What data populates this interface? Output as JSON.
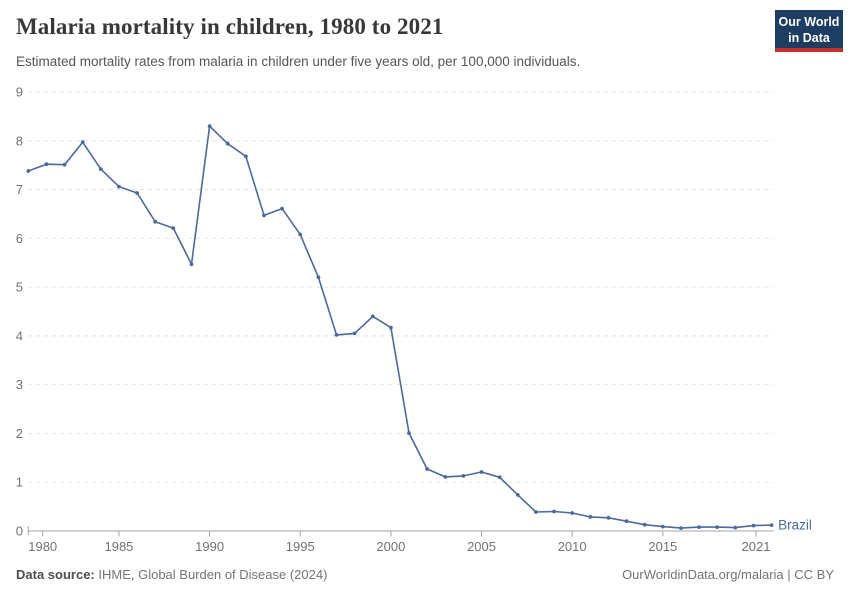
{
  "header": {
    "title": "Malaria mortality in children, 1980 to 2021",
    "subtitle": "Estimated mortality rates from malaria in children under five years old, per 100,000 individuals.",
    "logo": {
      "line1": "Our World",
      "line2": "in Data",
      "bg_color": "#1d3d63",
      "accent_color": "#c1322c"
    }
  },
  "chart_data": {
    "type": "line",
    "title": "Malaria mortality in children, 1980 to 2021",
    "subtitle": "Estimated mortality rates from malaria in children under five years old, per 100,000 individuals.",
    "xlabel": "",
    "ylabel": "",
    "x": [
      1980,
      1981,
      1982,
      1983,
      1984,
      1985,
      1986,
      1987,
      1988,
      1989,
      1990,
      1991,
      1992,
      1993,
      1994,
      1995,
      1996,
      1997,
      1998,
      1999,
      2000,
      2001,
      2002,
      2003,
      2004,
      2005,
      2006,
      2007,
      2008,
      2009,
      2010,
      2011,
      2012,
      2013,
      2014,
      2015,
      2016,
      2017,
      2018,
      2019,
      2020,
      2021
    ],
    "series": [
      {
        "name": "Brazil",
        "color": "#4c6a9c",
        "values": [
          7.38,
          7.52,
          7.51,
          7.97,
          7.42,
          7.06,
          6.93,
          6.34,
          6.21,
          5.47,
          8.3,
          7.94,
          7.68,
          6.47,
          6.61,
          6.08,
          5.2,
          4.02,
          4.05,
          4.4,
          4.17,
          2.01,
          1.27,
          1.11,
          1.13,
          1.21,
          1.1,
          0.74,
          0.39,
          0.4,
          0.37,
          0.29,
          0.27,
          0.2,
          0.13,
          0.09,
          0.06,
          0.08,
          0.08,
          0.07,
          0.11,
          0.12
        ]
      }
    ],
    "ylim": [
      0,
      9
    ],
    "yticks": [
      0,
      1,
      2,
      3,
      4,
      5,
      6,
      7,
      8,
      9
    ],
    "xticks": [
      1980,
      1985,
      1990,
      1995,
      2000,
      2005,
      2010,
      2015,
      2021
    ],
    "grid": "horizontal dashed",
    "legend": "end-of-line label",
    "colors": {
      "gridline": "#e2e2e2",
      "axis": "#a6a6a6",
      "tick_label": "#737373"
    }
  },
  "footer": {
    "source_label": "Data source:",
    "source_value": "IHME, Global Burden of Disease (2024)",
    "link": "OurWorldinData.org/malaria | CC BY"
  }
}
